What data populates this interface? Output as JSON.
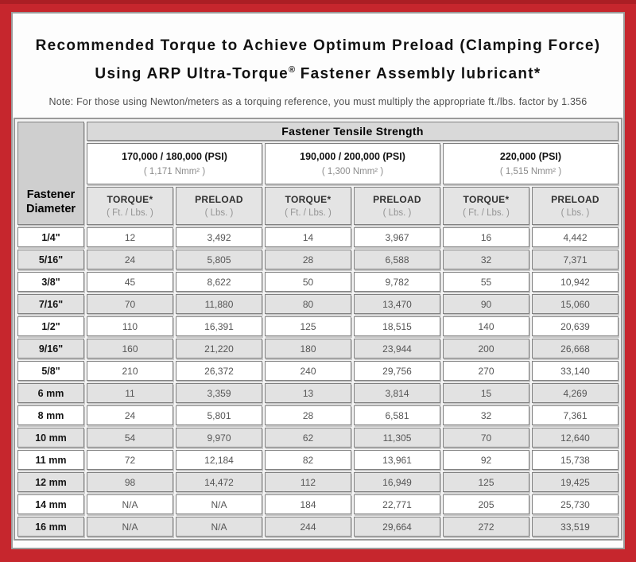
{
  "colors": {
    "frame_red": "#c6262d",
    "frame_top_strip": "#ab1e24",
    "panel_border_grey": "#9b9b9b",
    "header_grey": "#d9d9d9",
    "row_shade_grey": "#e2e2e2"
  },
  "header": {
    "title_line1": "Recommended Torque to Achieve Optimum Preload (Clamping Force)",
    "title_line2_prefix": "Using ARP Ultra-Torque",
    "title_line2_sup": "®",
    "title_line2_suffix": " Fastener Assembly lubricant*",
    "note": "Note: For those using Newton/meters as a torquing reference, you must multiply the appropriate ft./lbs. factor by 1.356"
  },
  "table": {
    "tensile_header": "Fastener Tensile Strength",
    "diameter_header_line1": "Fastener",
    "diameter_header_line2": "Diameter",
    "strength_groups": [
      {
        "psi": "170,000 / 180,000 (PSI)",
        "nmm": "( 1,171 Nmm² )"
      },
      {
        "psi": "190,000 / 200,000 (PSI)",
        "nmm": "( 1,300 Nmm² )"
      },
      {
        "psi": "220,000 (PSI)",
        "nmm": "( 1,515 Nmm² )"
      }
    ],
    "sub_headers": {
      "torque_label": "TORQUE*",
      "torque_unit": "( Ft. / Lbs. )",
      "preload_label": "PRELOAD",
      "preload_unit": "( Lbs. )"
    },
    "rows": [
      {
        "diameter": "1/4\"",
        "values": [
          "12",
          "3,492",
          "14",
          "3,967",
          "16",
          "4,442"
        ]
      },
      {
        "diameter": "5/16\"",
        "values": [
          "24",
          "5,805",
          "28",
          "6,588",
          "32",
          "7,371"
        ]
      },
      {
        "diameter": "3/8\"",
        "values": [
          "45",
          "8,622",
          "50",
          "9,782",
          "55",
          "10,942"
        ]
      },
      {
        "diameter": "7/16\"",
        "values": [
          "70",
          "11,880",
          "80",
          "13,470",
          "90",
          "15,060"
        ]
      },
      {
        "diameter": "1/2\"",
        "values": [
          "110",
          "16,391",
          "125",
          "18,515",
          "140",
          "20,639"
        ]
      },
      {
        "diameter": "9/16\"",
        "values": [
          "160",
          "21,220",
          "180",
          "23,944",
          "200",
          "26,668"
        ]
      },
      {
        "diameter": "5/8\"",
        "values": [
          "210",
          "26,372",
          "240",
          "29,756",
          "270",
          "33,140"
        ]
      },
      {
        "diameter": "6 mm",
        "values": [
          "11",
          "3,359",
          "13",
          "3,814",
          "15",
          "4,269"
        ]
      },
      {
        "diameter": "8 mm",
        "values": [
          "24",
          "5,801",
          "28",
          "6,581",
          "32",
          "7,361"
        ]
      },
      {
        "diameter": "10 mm",
        "values": [
          "54",
          "9,970",
          "62",
          "11,305",
          "70",
          "12,640"
        ]
      },
      {
        "diameter": "11 mm",
        "values": [
          "72",
          "12,184",
          "82",
          "13,961",
          "92",
          "15,738"
        ]
      },
      {
        "diameter": "12 mm",
        "values": [
          "98",
          "14,472",
          "112",
          "16,949",
          "125",
          "19,425"
        ]
      },
      {
        "diameter": "14 mm",
        "values": [
          "N/A",
          "N/A",
          "184",
          "22,771",
          "205",
          "25,730"
        ]
      },
      {
        "diameter": "16 mm",
        "values": [
          "N/A",
          "N/A",
          "244",
          "29,664",
          "272",
          "33,519"
        ]
      }
    ]
  }
}
